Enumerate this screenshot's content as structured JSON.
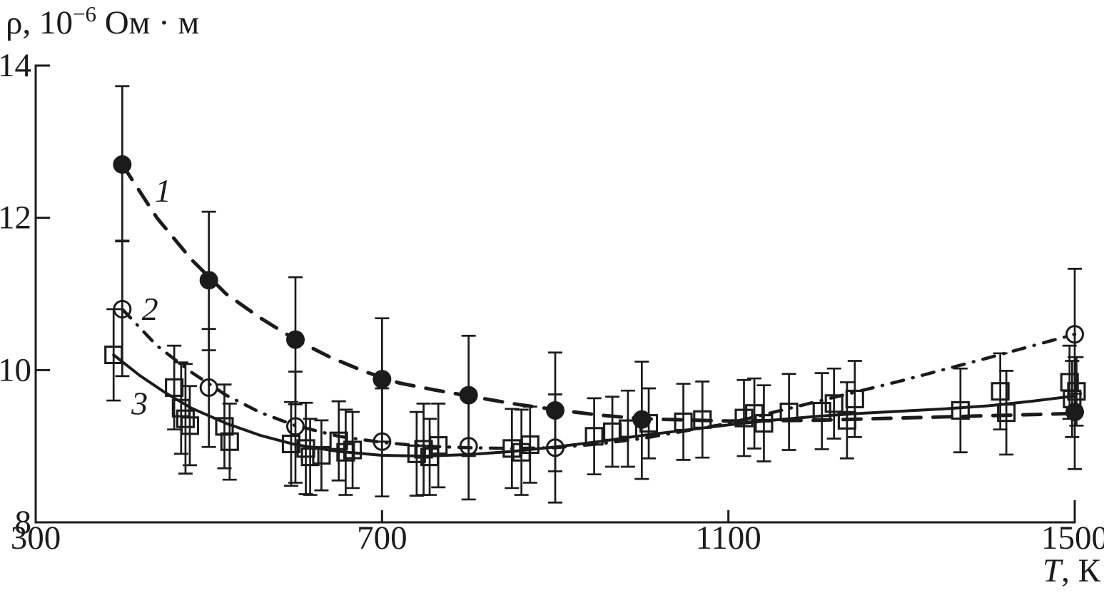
{
  "figure": {
    "background": "#ffffff",
    "ink_color": "#1b1b1b"
  },
  "chart_data": {
    "type": "scatter",
    "ylabel_parts": {
      "main": "ρ, 10",
      "sup": "−6",
      "rest": " Ом · м"
    },
    "xlabel_parts": {
      "italic": "T",
      "rest": ", К"
    },
    "xlim": [
      300,
      1500
    ],
    "ylim": [
      8,
      14
    ],
    "x_ticks": [
      300,
      700,
      1100,
      1500
    ],
    "x_tick_labels": [
      "300",
      "700",
      "1100",
      "1500"
    ],
    "x_tick_marks": [
      700,
      1100
    ],
    "y_ticks": [
      8,
      10,
      12,
      14
    ],
    "y_tick_labels": [
      "8",
      "10",
      "12",
      "14"
    ],
    "grid": false,
    "legend_position": "inline-curve-labels",
    "series": [
      {
        "name": "1",
        "marker": "filled-circle",
        "linestyle": "dashed",
        "label": {
          "text": "1",
          "T": 447,
          "rho": 12.36
        },
        "points": [
          [
            400,
            12.7,
            1.03,
            1.01
          ],
          [
            500,
            11.18,
            0.9,
            0.92
          ],
          [
            600,
            10.4,
            0.82,
            0.85
          ],
          [
            700,
            9.88,
            0.8,
            0.82
          ],
          [
            800,
            9.67,
            0.78,
            0.8
          ],
          [
            900,
            9.47,
            0.76,
            0.8
          ],
          [
            1000,
            9.35,
            0.76,
            0.78
          ],
          [
            1500,
            9.45,
            0.72,
            0.75
          ]
        ],
        "curve": [
          [
            400,
            12.7
          ],
          [
            440,
            12.0
          ],
          [
            480,
            11.45
          ],
          [
            520,
            11.0
          ],
          [
            560,
            10.68
          ],
          [
            600,
            10.4
          ],
          [
            640,
            10.17
          ],
          [
            680,
            9.98
          ],
          [
            720,
            9.83
          ],
          [
            760,
            9.74
          ],
          [
            800,
            9.66
          ],
          [
            850,
            9.56
          ],
          [
            900,
            9.48
          ],
          [
            950,
            9.41
          ],
          [
            1000,
            9.36
          ],
          [
            1100,
            9.33
          ],
          [
            1200,
            9.34
          ],
          [
            1300,
            9.37
          ],
          [
            1400,
            9.4
          ],
          [
            1500,
            9.43
          ]
        ]
      },
      {
        "name": "2",
        "marker": "open-circle",
        "linestyle": "dash-dot",
        "label": {
          "text": "2",
          "T": 432,
          "rho": 10.81
        },
        "points": [
          [
            400,
            10.8,
            0.9,
            0.88
          ],
          [
            500,
            9.77,
            0.77,
            0.78
          ],
          [
            600,
            9.26,
            0.72,
            0.74
          ],
          [
            700,
            9.06,
            0.7,
            0.72
          ],
          [
            800,
            9.0,
            0.67,
            0.7
          ],
          [
            900,
            8.98,
            0.7,
            0.72
          ],
          [
            1500,
            10.47,
            0.86,
            0.78
          ]
        ],
        "curve": [
          [
            400,
            10.8
          ],
          [
            440,
            10.32
          ],
          [
            480,
            9.97
          ],
          [
            520,
            9.67
          ],
          [
            560,
            9.44
          ],
          [
            600,
            9.27
          ],
          [
            650,
            9.13
          ],
          [
            700,
            9.05
          ],
          [
            750,
            9.0
          ],
          [
            800,
            8.98
          ],
          [
            850,
            8.97
          ],
          [
            900,
            8.98
          ],
          [
            950,
            9.03
          ],
          [
            1000,
            9.1
          ],
          [
            1100,
            9.3
          ],
          [
            1200,
            9.58
          ],
          [
            1300,
            9.86
          ],
          [
            1400,
            10.16
          ],
          [
            1500,
            10.47
          ]
        ]
      },
      {
        "name": "3",
        "marker": "open-square",
        "linestyle": "solid",
        "label": {
          "text": "3",
          "T": 420,
          "rho": 9.57
        },
        "points": [
          [
            390,
            10.2,
            0.6
          ],
          [
            460,
            9.77,
            0.55
          ],
          [
            468,
            9.5,
            0.6
          ],
          [
            473,
            9.36,
            0.72
          ],
          [
            478,
            9.27,
            0.52
          ],
          [
            518,
            9.26,
            0.55
          ],
          [
            524,
            9.06,
            0.5
          ],
          [
            595,
            9.03,
            0.55
          ],
          [
            612,
            8.97,
            0.6
          ],
          [
            617,
            8.86,
            0.5
          ],
          [
            630,
            8.88,
            0.46
          ],
          [
            650,
            9.07,
            0.52
          ],
          [
            658,
            8.92,
            0.56
          ],
          [
            666,
            8.95,
            0.5
          ],
          [
            740,
            8.9,
            0.55
          ],
          [
            748,
            8.96,
            0.6
          ],
          [
            755,
            8.86,
            0.5
          ],
          [
            765,
            9.01,
            0.55
          ],
          [
            850,
            8.97,
            0.52
          ],
          [
            861,
            8.92,
            0.56
          ],
          [
            871,
            9.02,
            0.5
          ],
          [
            945,
            9.13,
            0.5
          ],
          [
            966,
            9.19,
            0.46
          ],
          [
            984,
            9.23,
            0.5
          ],
          [
            1008,
            9.3,
            0.46
          ],
          [
            1048,
            9.32,
            0.5
          ],
          [
            1070,
            9.35,
            0.5
          ],
          [
            1118,
            9.37,
            0.5
          ],
          [
            1130,
            9.43,
            0.46
          ],
          [
            1141,
            9.3,
            0.5
          ],
          [
            1170,
            9.45,
            0.5
          ],
          [
            1208,
            9.46,
            0.5
          ],
          [
            1222,
            9.56,
            0.46
          ],
          [
            1237,
            9.34,
            0.5
          ],
          [
            1246,
            9.62,
            0.5
          ],
          [
            1368,
            9.47,
            0.55
          ],
          [
            1414,
            9.72,
            0.5
          ],
          [
            1421,
            9.44,
            0.55
          ],
          [
            1494,
            9.84,
            0.48
          ],
          [
            1497,
            9.62,
            0.5
          ],
          [
            1502,
            9.72,
            0.45
          ]
        ],
        "curve": [
          [
            390,
            10.2
          ],
          [
            420,
            9.93
          ],
          [
            450,
            9.7
          ],
          [
            480,
            9.5
          ],
          [
            520,
            9.3
          ],
          [
            560,
            9.14
          ],
          [
            600,
            9.02
          ],
          [
            650,
            8.93
          ],
          [
            700,
            8.88
          ],
          [
            750,
            8.87
          ],
          [
            800,
            8.89
          ],
          [
            850,
            8.93
          ],
          [
            900,
            8.99
          ],
          [
            950,
            9.06
          ],
          [
            1000,
            9.14
          ],
          [
            1050,
            9.21
          ],
          [
            1100,
            9.28
          ],
          [
            1150,
            9.34
          ],
          [
            1200,
            9.39
          ],
          [
            1250,
            9.43
          ],
          [
            1300,
            9.46
          ],
          [
            1350,
            9.49
          ],
          [
            1400,
            9.53
          ],
          [
            1450,
            9.59
          ],
          [
            1500,
            9.66
          ]
        ]
      }
    ]
  }
}
